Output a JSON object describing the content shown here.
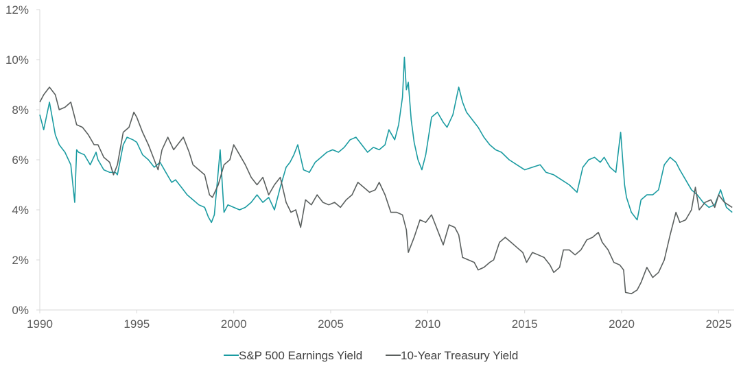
{
  "chart_data": {
    "type": "line",
    "title": "",
    "xlabel": "",
    "ylabel": "",
    "xlim": [
      1990,
      2025.8
    ],
    "ylim": [
      0,
      12
    ],
    "x_ticks": [
      1990,
      1995,
      2000,
      2005,
      2010,
      2015,
      2020,
      2025
    ],
    "x_tick_labels": [
      "1990",
      "1995",
      "2000",
      "2005",
      "2010",
      "2015",
      "2020",
      "2025"
    ],
    "y_ticks": [
      0,
      2,
      4,
      6,
      8,
      10,
      12
    ],
    "y_tick_labels": [
      "0%",
      "2%",
      "4%",
      "6%",
      "8%",
      "10%",
      "12%"
    ],
    "grid": false,
    "legend_position": "bottom",
    "series": [
      {
        "name": "S&P 500 Earnings Yield",
        "color": "#1a9ba1",
        "x": [
          1990.0,
          1990.2,
          1990.5,
          1990.8,
          1991.0,
          1991.3,
          1991.6,
          1991.8,
          1991.9,
          1992.0,
          1992.3,
          1992.6,
          1992.9,
          1993.0,
          1993.3,
          1993.6,
          1993.9,
          1994.0,
          1994.3,
          1994.5,
          1994.8,
          1995.0,
          1995.3,
          1995.6,
          1995.9,
          1996.2,
          1996.5,
          1996.8,
          1997.0,
          1997.3,
          1997.6,
          1997.9,
          1998.2,
          1998.5,
          1998.7,
          1998.85,
          1999.0,
          1999.3,
          1999.5,
          1999.7,
          2000.0,
          2000.3,
          2000.6,
          2000.9,
          2001.2,
          2001.5,
          2001.8,
          2002.1,
          2002.4,
          2002.7,
          2002.9,
          2003.1,
          2003.3,
          2003.6,
          2003.9,
          2004.2,
          2004.5,
          2004.8,
          2005.1,
          2005.4,
          2005.7,
          2006.0,
          2006.3,
          2006.6,
          2006.9,
          2007.2,
          2007.5,
          2007.8,
          2008.0,
          2008.3,
          2008.5,
          2008.7,
          2008.8,
          2008.9,
          2009.0,
          2009.15,
          2009.3,
          2009.5,
          2009.7,
          2009.9,
          2010.2,
          2010.5,
          2010.8,
          2011.0,
          2011.3,
          2011.6,
          2011.8,
          2012.0,
          2012.3,
          2012.6,
          2012.9,
          2013.2,
          2013.5,
          2013.8,
          2014.2,
          2014.6,
          2015.0,
          2015.4,
          2015.8,
          2016.1,
          2016.5,
          2016.9,
          2017.3,
          2017.7,
          2018.0,
          2018.3,
          2018.6,
          2018.9,
          2019.1,
          2019.4,
          2019.7,
          2019.95,
          2020.15,
          2020.25,
          2020.5,
          2020.8,
          2021.0,
          2021.3,
          2021.6,
          2021.9,
          2022.2,
          2022.5,
          2022.8,
          2023.0,
          2023.3,
          2023.6,
          2023.9,
          2024.2,
          2024.5,
          2024.8,
          2025.1,
          2025.4,
          2025.7
        ],
        "values": [
          7.8,
          7.2,
          8.3,
          7.0,
          6.6,
          6.3,
          5.8,
          4.3,
          6.4,
          6.3,
          6.2,
          5.8,
          6.3,
          6.0,
          5.6,
          5.5,
          5.5,
          5.4,
          6.6,
          6.9,
          6.8,
          6.7,
          6.2,
          6.0,
          5.7,
          5.9,
          5.5,
          5.1,
          5.2,
          4.9,
          4.6,
          4.4,
          4.2,
          4.1,
          3.7,
          3.5,
          3.8,
          6.4,
          3.9,
          4.2,
          4.1,
          4.0,
          4.1,
          4.3,
          4.6,
          4.3,
          4.5,
          4.0,
          4.9,
          5.7,
          5.9,
          6.2,
          6.6,
          5.6,
          5.5,
          5.9,
          6.1,
          6.3,
          6.4,
          6.3,
          6.5,
          6.8,
          6.9,
          6.6,
          6.3,
          6.5,
          6.4,
          6.6,
          7.2,
          6.8,
          7.4,
          8.5,
          10.1,
          8.8,
          9.1,
          7.6,
          6.7,
          6.0,
          5.6,
          6.2,
          7.7,
          7.9,
          7.5,
          7.3,
          7.8,
          8.9,
          8.3,
          7.9,
          7.6,
          7.3,
          6.9,
          6.6,
          6.4,
          6.3,
          6.0,
          5.8,
          5.6,
          5.7,
          5.8,
          5.5,
          5.4,
          5.2,
          5.0,
          4.7,
          5.7,
          6.0,
          6.1,
          5.9,
          6.1,
          5.7,
          5.5,
          7.1,
          5.0,
          4.5,
          3.9,
          3.6,
          4.4,
          4.6,
          4.6,
          4.8,
          5.8,
          6.1,
          5.9,
          5.6,
          5.2,
          4.8,
          4.6,
          4.3,
          4.1,
          4.2,
          4.8,
          4.1,
          3.9
        ]
      },
      {
        "name": "10-Year Treasury Yield",
        "color": "#5a5f5e",
        "x": [
          1990.0,
          1990.2,
          1990.5,
          1990.8,
          1991.0,
          1991.3,
          1991.6,
          1991.9,
          1992.2,
          1992.5,
          1992.8,
          1993.0,
          1993.3,
          1993.6,
          1993.8,
          1994.0,
          1994.3,
          1994.6,
          1994.85,
          1995.0,
          1995.3,
          1995.6,
          1995.9,
          1996.1,
          1996.3,
          1996.6,
          1996.9,
          1997.1,
          1997.4,
          1997.7,
          1997.9,
          1998.2,
          1998.5,
          1998.75,
          1998.9,
          1999.2,
          1999.5,
          1999.8,
          2000.0,
          2000.3,
          2000.6,
          2000.9,
          2001.2,
          2001.5,
          2001.8,
          2002.1,
          2002.4,
          2002.7,
          2002.95,
          2003.2,
          2003.45,
          2003.7,
          2004.0,
          2004.3,
          2004.6,
          2004.9,
          2005.2,
          2005.5,
          2005.8,
          2006.1,
          2006.4,
          2006.7,
          2007.0,
          2007.3,
          2007.5,
          2007.8,
          2008.1,
          2008.4,
          2008.7,
          2008.9,
          2009.0,
          2009.3,
          2009.6,
          2009.9,
          2010.2,
          2010.5,
          2010.8,
          2011.1,
          2011.4,
          2011.6,
          2011.8,
          2012.1,
          2012.4,
          2012.6,
          2012.9,
          2013.2,
          2013.4,
          2013.7,
          2014.0,
          2014.3,
          2014.6,
          2014.9,
          2015.1,
          2015.4,
          2015.7,
          2016.0,
          2016.3,
          2016.5,
          2016.8,
          2017.0,
          2017.3,
          2017.6,
          2017.9,
          2018.2,
          2018.5,
          2018.8,
          2019.0,
          2019.3,
          2019.6,
          2019.9,
          2020.1,
          2020.2,
          2020.5,
          2020.8,
          2021.0,
          2021.3,
          2021.6,
          2021.9,
          2022.2,
          2022.5,
          2022.8,
          2023.0,
          2023.3,
          2023.6,
          2023.8,
          2024.0,
          2024.3,
          2024.6,
          2024.8,
          2025.0,
          2025.3,
          2025.7
        ],
        "values": [
          8.3,
          8.6,
          8.9,
          8.6,
          8.0,
          8.1,
          8.3,
          7.4,
          7.3,
          7.0,
          6.6,
          6.6,
          6.1,
          5.9,
          5.4,
          5.8,
          7.1,
          7.3,
          7.9,
          7.7,
          7.1,
          6.6,
          6.0,
          5.6,
          6.4,
          6.9,
          6.4,
          6.6,
          6.9,
          6.3,
          5.8,
          5.6,
          5.4,
          4.6,
          4.5,
          5.0,
          5.8,
          6.0,
          6.6,
          6.2,
          5.8,
          5.3,
          5.0,
          5.3,
          4.6,
          5.0,
          5.3,
          4.3,
          3.9,
          4.0,
          3.3,
          4.4,
          4.2,
          4.6,
          4.3,
          4.2,
          4.3,
          4.1,
          4.4,
          4.6,
          5.1,
          4.9,
          4.7,
          4.8,
          5.1,
          4.6,
          3.9,
          3.9,
          3.8,
          3.2,
          2.3,
          2.9,
          3.6,
          3.5,
          3.8,
          3.2,
          2.6,
          3.4,
          3.3,
          3.0,
          2.1,
          2.0,
          1.9,
          1.6,
          1.7,
          1.9,
          2.0,
          2.7,
          2.9,
          2.7,
          2.5,
          2.3,
          1.9,
          2.3,
          2.2,
          2.1,
          1.8,
          1.5,
          1.7,
          2.4,
          2.4,
          2.2,
          2.4,
          2.8,
          2.9,
          3.1,
          2.7,
          2.4,
          1.9,
          1.8,
          1.6,
          0.7,
          0.65,
          0.8,
          1.1,
          1.7,
          1.3,
          1.5,
          2.0,
          3.0,
          3.9,
          3.5,
          3.6,
          4.0,
          4.9,
          4.0,
          4.3,
          4.4,
          4.1,
          4.6,
          4.3,
          4.1
        ]
      }
    ]
  }
}
